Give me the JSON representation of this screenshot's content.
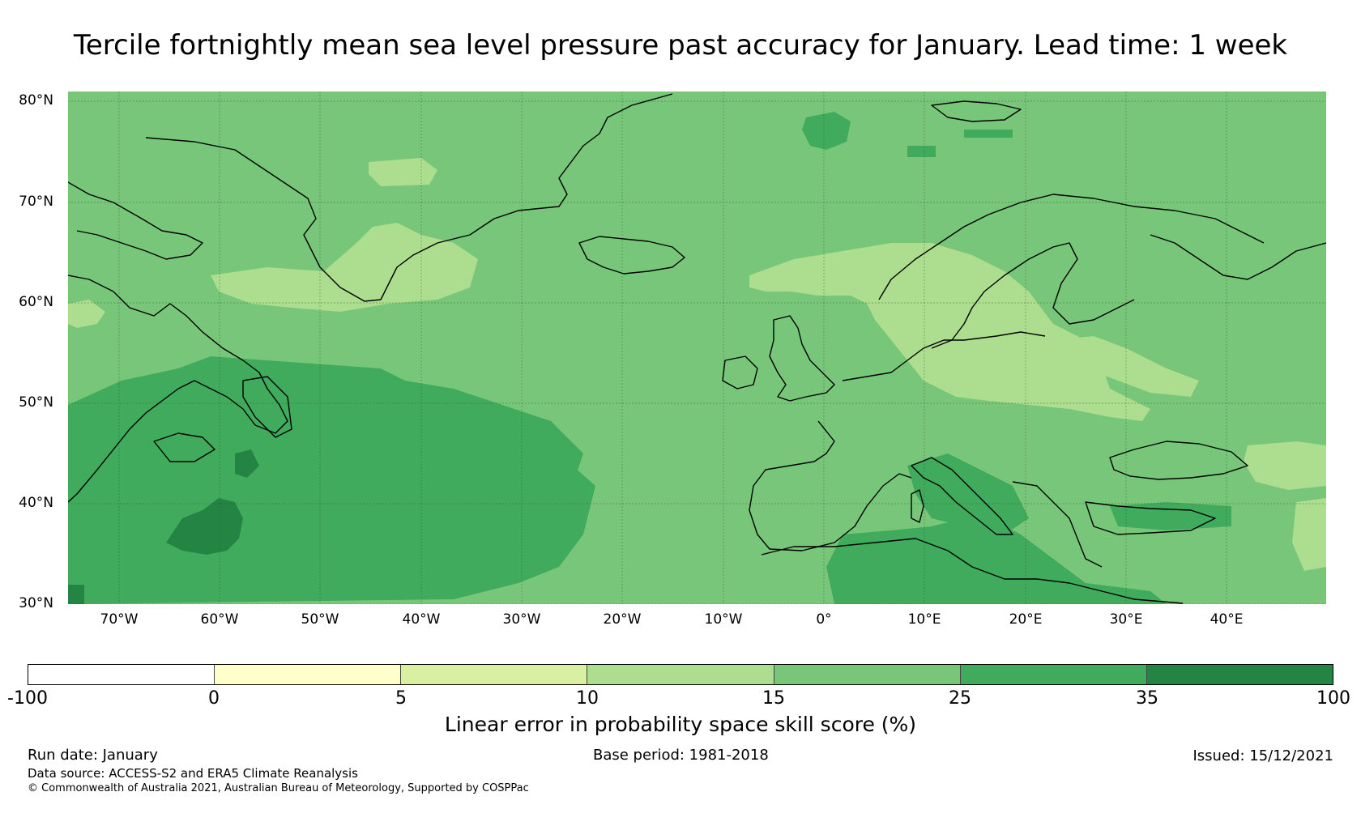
{
  "title": "Tercile fortnightly mean sea level pressure past accuracy for January. Lead time: 1 week",
  "map": {
    "lat_labels": [
      "80°N",
      "70°N",
      "60°N",
      "50°N",
      "40°N",
      "30°N"
    ],
    "lon_labels": [
      "70°W",
      "60°W",
      "50°W",
      "40°W",
      "30°W",
      "20°W",
      "10°W",
      "0°",
      "10°E",
      "20°E",
      "30°E",
      "40°E"
    ],
    "extent": {
      "lon_min": -75,
      "lon_max": 50,
      "lat_min": 30,
      "lat_max": 81
    },
    "grid_lons": [
      -70,
      -60,
      -50,
      -40,
      -30,
      -20,
      -10,
      0,
      10,
      20,
      30,
      40
    ],
    "grid_lats": [
      30,
      40,
      50,
      60,
      70,
      80
    ],
    "regions_description_free": true
  },
  "colorbar": {
    "label": "Linear error in probability space skill score (%)",
    "ticks": [
      "-100",
      "0",
      "5",
      "10",
      "15",
      "25",
      "35",
      "100"
    ],
    "colors": [
      "#ffffff",
      "#ffffcc",
      "#d9f0a3",
      "#addd8e",
      "#78c679",
      "#41ab5d",
      "#238443"
    ]
  },
  "footer": {
    "run_date": "Run date: January",
    "base_period": "Base period: 1981-2018",
    "issued": "Issued: 15/12/2021",
    "data_source": "Data source: ACCESS-S2 and ERA5 Climate Reanalysis",
    "copyright": "© Commonwealth of Australia 2021, Australian Bureau of Meteorology, Supported by COSPPac"
  }
}
